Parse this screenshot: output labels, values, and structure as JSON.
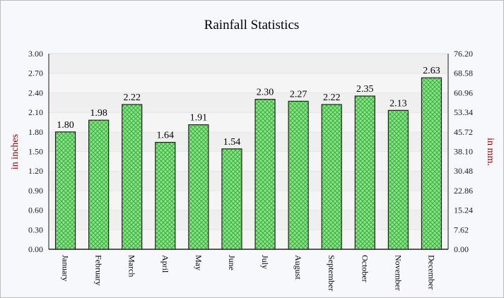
{
  "chart_data": {
    "type": "bar",
    "title": "Rainfall Statistics",
    "ylabel": "in inches",
    "y2label": "in mm.",
    "categories": [
      "January",
      "February",
      "March",
      "April",
      "May",
      "June",
      "July",
      "August",
      "September",
      "October",
      "November",
      "December"
    ],
    "values": [
      1.8,
      1.98,
      2.22,
      1.64,
      1.91,
      1.54,
      2.3,
      2.27,
      2.22,
      2.35,
      2.13,
      2.63
    ],
    "data_labels": [
      "1.80",
      "1.98",
      "2.22",
      "1.64",
      "1.91",
      "1.54",
      "2.30",
      "2.27",
      "2.22",
      "2.35",
      "2.13",
      "2.63"
    ],
    "ylim": [
      0,
      3.0
    ],
    "y_ticks": [
      "0.00",
      "0.30",
      "0.60",
      "0.90",
      "1.20",
      "1.50",
      "1.80",
      "2.10",
      "2.40",
      "2.70",
      "3.00"
    ],
    "y2lim": [
      0,
      76.2
    ],
    "y2_ticks": [
      "0.00",
      "7.62",
      "15.24",
      "22.86",
      "30.48",
      "38.10",
      "45.72",
      "53.34",
      "60.96",
      "68.58",
      "76.20"
    ],
    "grid": true,
    "colors": {
      "bar": "#7ee87e",
      "hatch": "#4ab04a",
      "tick_label": "#1a1a1a"
    }
  }
}
